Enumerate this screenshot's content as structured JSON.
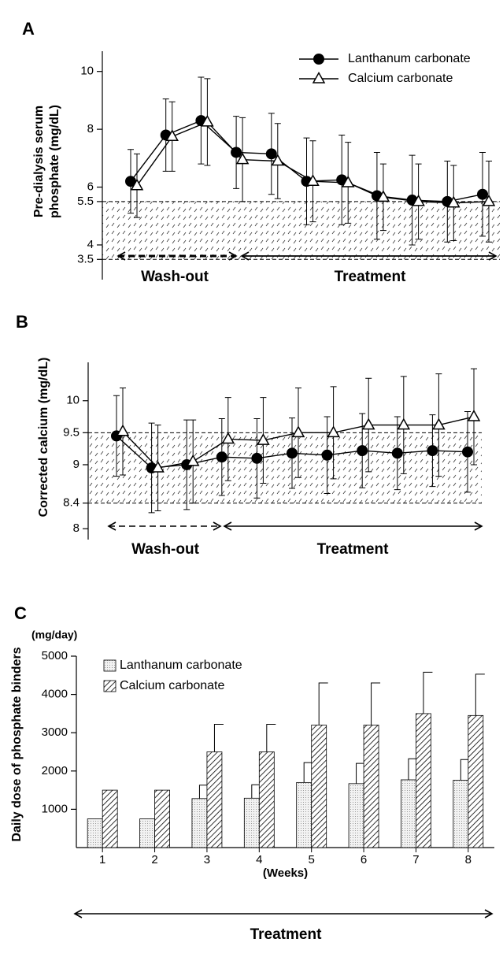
{
  "chart_data": [
    {
      "type": "line",
      "panel": "A",
      "ylabel": [
        "Pre-dialysis serum",
        "phosphate (mg/dL)"
      ],
      "categories": [
        null,
        null,
        null,
        null,
        null,
        null,
        null,
        null,
        null,
        null,
        null
      ],
      "series": [
        {
          "name": "Lanthanum carbonate",
          "color": "#000000",
          "marker": "circle",
          "values": [
            6.2,
            7.8,
            8.3,
            7.2,
            7.15,
            6.2,
            6.25,
            5.7,
            5.55,
            5.5,
            5.75
          ],
          "errors": [
            1.1,
            1.25,
            1.5,
            1.25,
            1.4,
            1.5,
            1.55,
            1.5,
            1.55,
            1.4,
            1.45
          ]
        },
        {
          "name": "Calcium carbonate",
          "color": "#000000",
          "marker": "triangle",
          "values": [
            6.05,
            7.75,
            8.25,
            6.95,
            6.9,
            6.2,
            6.15,
            5.65,
            5.5,
            5.45,
            5.5
          ],
          "errors": [
            1.1,
            1.2,
            1.5,
            1.45,
            1.3,
            1.4,
            1.4,
            1.15,
            1.3,
            1.3,
            1.4
          ]
        }
      ],
      "ylim": [
        2.8,
        10.7
      ],
      "yticks": [
        3.5,
        4,
        5.5,
        6,
        8,
        10
      ],
      "band": [
        3.5,
        5.5
      ],
      "legend": "upper right",
      "annotations": [
        {
          "text": "Wash-out",
          "style": "dashed"
        },
        {
          "text": "Treatment",
          "style": "solid"
        }
      ]
    },
    {
      "type": "line",
      "panel": "B",
      "ylabel": [
        "Corrected calcium (mg/dL)"
      ],
      "categories": [
        null,
        null,
        null,
        null,
        null,
        null,
        null,
        null,
        null,
        null,
        null
      ],
      "series": [
        {
          "name": "Lanthanum carbonate",
          "color": "#000000",
          "marker": "circle",
          "values": [
            9.45,
            8.95,
            9.0,
            9.12,
            9.1,
            9.18,
            9.15,
            9.22,
            9.18,
            9.22,
            9.2
          ],
          "errors": [
            0.63,
            0.7,
            0.7,
            0.6,
            0.62,
            0.55,
            0.6,
            0.58,
            0.57,
            0.56,
            0.63
          ]
        },
        {
          "name": "Calcium carbonate",
          "color": "#000000",
          "marker": "triangle",
          "values": [
            9.52,
            8.95,
            9.05,
            9.4,
            9.38,
            9.5,
            9.5,
            9.62,
            9.62,
            9.62,
            9.75
          ],
          "errors": [
            0.68,
            0.67,
            0.65,
            0.65,
            0.67,
            0.7,
            0.72,
            0.73,
            0.76,
            0.8,
            0.75
          ]
        }
      ],
      "ylim": [
        7.83,
        10.6
      ],
      "yticks": [
        8,
        8.4,
        9,
        9.5,
        10
      ],
      "band": [
        8.4,
        9.5
      ],
      "annotations": [
        {
          "text": "Wash-out",
          "style": "dashed"
        },
        {
          "text": "Treatment",
          "style": "solid"
        }
      ]
    },
    {
      "type": "bar",
      "panel": "C",
      "ylabel": [
        "Daily dose of phosphate binders"
      ],
      "yunit": "(mg/day)",
      "xlabel": "(Weeks)",
      "categories": [
        "1",
        "2",
        "3",
        "4",
        "5",
        "6",
        "7",
        "8"
      ],
      "series": [
        {
          "name": "Lanthanum carbonate",
          "color": "#e6e6e6",
          "pattern": "dots",
          "values": [
            750,
            750,
            1280,
            1290,
            1700,
            1670,
            1770,
            1760
          ],
          "errors": [
            null,
            null,
            350,
            350,
            520,
            530,
            550,
            540
          ]
        },
        {
          "name": "Calcium carbonate",
          "color": "#ffffff",
          "pattern": "hatch",
          "values": [
            1500,
            1500,
            2500,
            2500,
            3200,
            3200,
            3500,
            3450
          ],
          "errors": [
            null,
            null,
            720,
            720,
            1100,
            1100,
            1080,
            1080
          ]
        }
      ],
      "ylim": [
        0,
        5000
      ],
      "yticks": [
        1000,
        2000,
        3000,
        4000,
        5000
      ],
      "legend": "upper left",
      "annotations": [
        {
          "text": "Treatment",
          "style": "solid"
        }
      ]
    }
  ]
}
